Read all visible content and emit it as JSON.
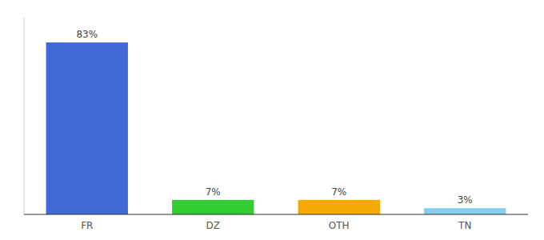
{
  "chart_data": {
    "type": "bar",
    "categories": [
      "FR",
      "DZ",
      "OTH",
      "TN"
    ],
    "values": [
      83,
      7,
      7,
      3
    ],
    "value_labels": [
      "83%",
      "7%",
      "7%",
      "3%"
    ],
    "colors": [
      "#4169d4",
      "#32cd32",
      "#f5a800",
      "#87ceeb"
    ],
    "ylim": [
      0,
      95
    ],
    "data_labels": true,
    "tick_labels": "x",
    "grid": false
  }
}
